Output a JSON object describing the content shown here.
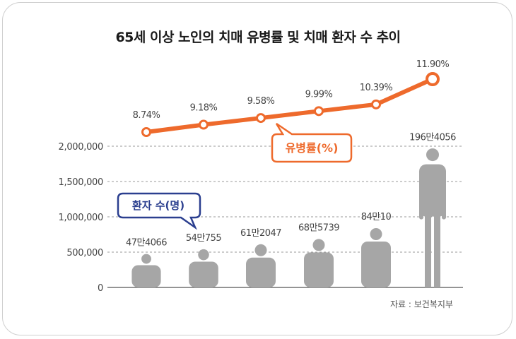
{
  "title": "65세 이상 노인의 치매 유병률 및 치매 환자 수 추이",
  "source": "자료 : 보건복지부",
  "colors": {
    "line": "#ee6a2c",
    "figure": "#a6a6a6",
    "callout_patients": "#2b3f8f",
    "axis": "#555555",
    "grid": "#9a9a9a",
    "text": "#444444"
  },
  "chart_data": {
    "type": "bar",
    "categories": [
      "",
      "",
      "",
      "",
      "",
      ""
    ],
    "series": [
      {
        "name": "환자 수(명)",
        "type": "bar",
        "icon": "person-figure",
        "values": [
          474066,
          540755,
          612047,
          685739,
          840010,
          1964056
        ],
        "labels": [
          "47만4066",
          "54만755",
          "61만2047",
          "68만5739",
          "84만10",
          "196만4056"
        ]
      },
      {
        "name": "유병률(%)",
        "type": "line",
        "values": [
          8.74,
          9.18,
          9.58,
          9.99,
          10.39,
          11.9
        ],
        "labels": [
          "8.74%",
          "9.18%",
          "9.58%",
          "9.99%",
          "10.39%",
          "11.90%"
        ]
      }
    ],
    "y_axis": {
      "ticks": [
        "0",
        "500,000",
        "1,000,000",
        "1,500,000",
        "2,000,000"
      ],
      "tick_values": [
        0,
        500000,
        1000000,
        1500000,
        2000000
      ],
      "ylim": [
        0,
        2000000
      ]
    },
    "grid": "horizontal dashed",
    "legend": "callouts"
  }
}
